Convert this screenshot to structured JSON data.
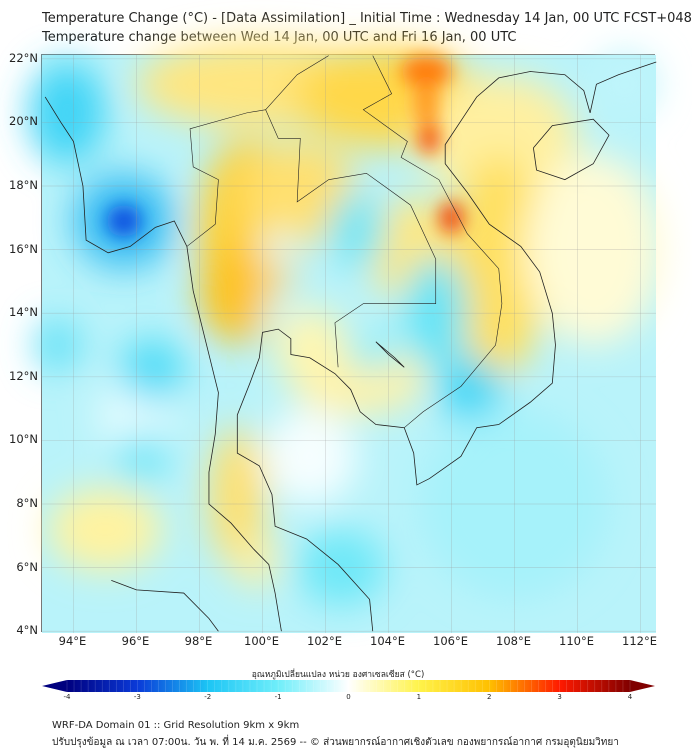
{
  "header": {
    "title_line1": "Temperature Change (°C) - [Data Assimilation] _ Initial Time : Wednesday 14 Jan, 00 UTC FCST+048",
    "title_line2": "Temperature change between Wed 14 Jan, 00 UTC and Fri 16 Jan, 00 UTC"
  },
  "map": {
    "lat_labels": [
      "22°N",
      "20°N",
      "18°N",
      "16°N",
      "14°N",
      "12°N",
      "10°N",
      "8°N",
      "6°N",
      "4°N"
    ],
    "lon_labels": [
      "94°E",
      "96°E",
      "98°E",
      "100°E",
      "102°E",
      "104°E",
      "106°E",
      "108°E",
      "110°E",
      "112°E"
    ]
  },
  "colorbar": {
    "title": "อุณหภูมิเปลี่ยนแปลง หน่วย องศาเซลเซียส (°C)",
    "ticks": [
      "-4",
      "-3",
      "-2",
      "-1",
      "0",
      "1",
      "2",
      "3",
      "4"
    ],
    "colors": [
      "#00007f",
      "#0a3ad8",
      "#1cc5f5",
      "#6feefa",
      "#ffffff",
      "#fff34a",
      "#ffc000",
      "#ff1a00",
      "#800000"
    ]
  },
  "footer": {
    "line1": "WRF-DA Domain 01 :: Grid Resolution 9km x 9km",
    "line2": "ปรับปรุงข้อมูล ณ เวลา 07:00น. วัน พ. ที่ 14 ม.ค. 2569 -- © ส่วนพยากรณ์อากาศเชิงตัวเลข กองพยากรณ์อากาศ กรมอุตุนิยมวิทยา"
  }
}
